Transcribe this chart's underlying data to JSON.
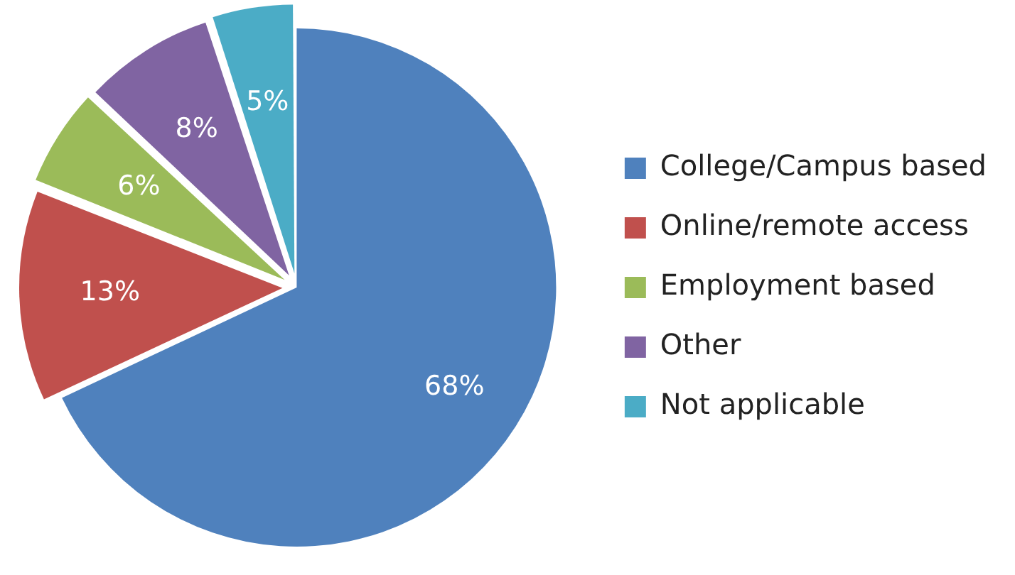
{
  "chart_data": {
    "type": "pie",
    "categories": [
      "College/Campus based",
      "Online/remote access",
      "Employment based",
      "Other",
      "Not applicable"
    ],
    "values": [
      68,
      13,
      6,
      8,
      5
    ],
    "colors": [
      "#4f81bd",
      "#c0504d",
      "#9bbb59",
      "#8064a2",
      "#4bacc6"
    ],
    "value_labels": [
      "68%",
      "13%",
      "6%",
      "8%",
      "5%"
    ],
    "legend": "right"
  }
}
